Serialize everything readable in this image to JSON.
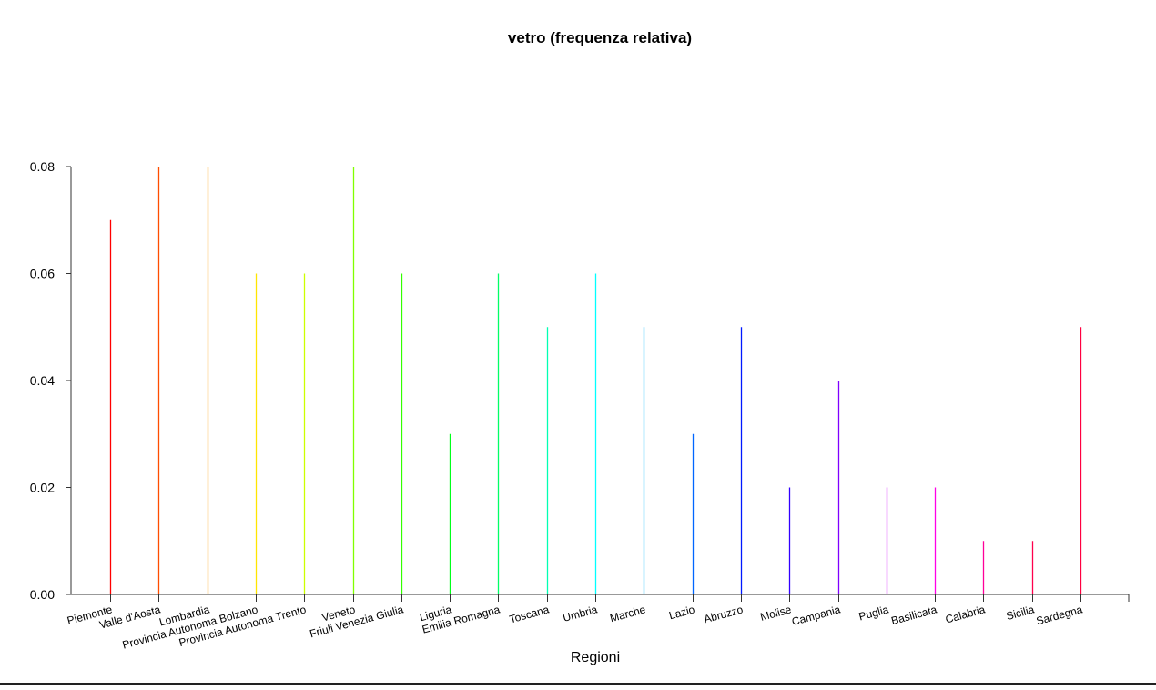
{
  "chart_data": {
    "type": "bar",
    "title": "vetro  (frequenza relativa)",
    "xlabel": "Regioni",
    "ylabel": "",
    "ylim": [
      0,
      0.08
    ],
    "yticks": [
      "0.00",
      "0.02",
      "0.04",
      "0.06",
      "0.08"
    ],
    "grid": false,
    "categories": [
      "Piemonte",
      "Valle d'Aosta",
      "Lombardia",
      "Provincia Autonoma Bolzano",
      "Provincia Autonoma Trento",
      "Veneto",
      "Friuli Venezia Giulia",
      "Liguria",
      "Emilia Romagna",
      "Toscana",
      "Umbria",
      "Marche",
      "Lazio",
      "Abruzzo",
      "Molise",
      "Campania",
      "Puglia",
      "Basilicata",
      "Calabria",
      "Sicilia",
      "Sardegna"
    ],
    "values": [
      0.07,
      0.08,
      0.08,
      0.06,
      0.06,
      0.08,
      0.06,
      0.03,
      0.06,
      0.05,
      0.06,
      0.05,
      0.03,
      0.05,
      0.02,
      0.04,
      0.02,
      0.02,
      0.01,
      0.01,
      0.05
    ],
    "colors": [
      "#ff0000",
      "#ff4d00",
      "#ff9900",
      "#ffe500",
      "#ccff00",
      "#80ff00",
      "#33ff00",
      "#00ff19",
      "#00ff66",
      "#00ffb2",
      "#00ffff",
      "#00b3ff",
      "#0066ff",
      "#0019ff",
      "#3300ff",
      "#7f00ff",
      "#cc00ff",
      "#ff00e6",
      "#ff0099",
      "#ff004d",
      "#ff0040"
    ]
  }
}
